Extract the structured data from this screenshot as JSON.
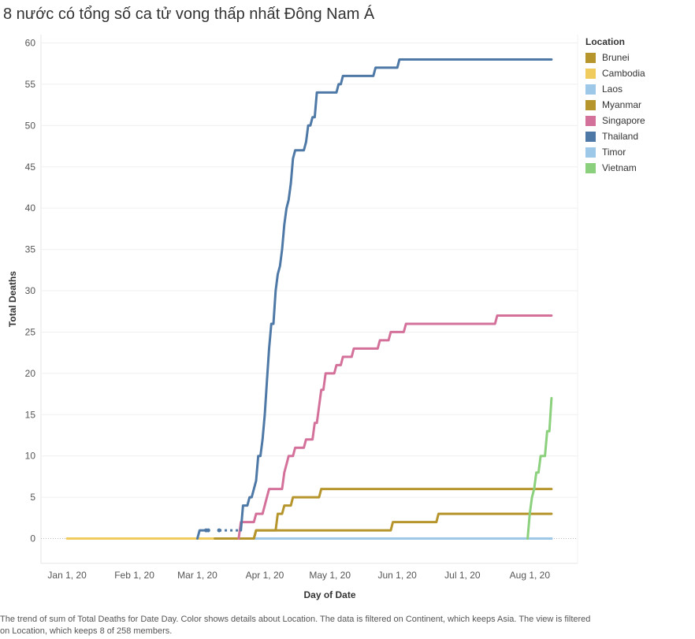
{
  "title": "8 nước có tổng số ca tử vong thấp nhất Đông Nam Á",
  "caption": "The trend of sum of Total Deaths for Date Day.  Color shows details about Location. The data is filtered on Continent, which keeps Asia. The view is filtered on Location, which keeps 8 of 258 members.",
  "legend": {
    "title": "Location",
    "items": [
      {
        "label": "Brunei",
        "color": "#b5952c"
      },
      {
        "label": "Cambodia",
        "color": "#f0cc5f"
      },
      {
        "label": "Laos",
        "color": "#9ec8e8"
      },
      {
        "label": "Myanmar",
        "color": "#b5952c"
      },
      {
        "label": "Singapore",
        "color": "#d4719a"
      },
      {
        "label": "Thailand",
        "color": "#4e79a7"
      },
      {
        "label": "Timor",
        "color": "#9ec8e8"
      },
      {
        "label": "Vietnam",
        "color": "#8bd07c"
      }
    ]
  },
  "chart_data": {
    "type": "line",
    "xlabel": "Day of Date",
    "ylabel": "Total Deaths",
    "x_ticks": [
      {
        "date": "2020-01-01",
        "label": "Jan 1, 20"
      },
      {
        "date": "2020-02-01",
        "label": "Feb 1, 20"
      },
      {
        "date": "2020-03-01",
        "label": "Mar 1, 20"
      },
      {
        "date": "2020-04-01",
        "label": "Apr 1, 20"
      },
      {
        "date": "2020-05-01",
        "label": "May 1, 20"
      },
      {
        "date": "2020-06-01",
        "label": "Jun 1, 20"
      },
      {
        "date": "2020-07-01",
        "label": "Jul 1, 20"
      },
      {
        "date": "2020-08-01",
        "label": "Aug 1, 20"
      }
    ],
    "xlim": [
      "2019-12-20",
      "2020-08-23"
    ],
    "ylim": [
      -3,
      61
    ],
    "y_ticks": [
      0,
      5,
      10,
      15,
      20,
      25,
      30,
      35,
      40,
      45,
      50,
      55,
      60
    ],
    "grid": "horizontal",
    "legend_position": "right",
    "series": [
      {
        "name": "Cambodia",
        "color": "#f0cc5f",
        "points": [
          [
            "2020-01-01",
            0
          ],
          [
            "2020-08-11",
            0
          ]
        ]
      },
      {
        "name": "Laos",
        "color": "#9ec8e8",
        "points": [
          [
            "2020-03-24",
            0
          ],
          [
            "2020-08-11",
            0
          ]
        ]
      },
      {
        "name": "Timor",
        "color": "#9ec8e8",
        "points": [
          [
            "2020-03-21",
            0
          ],
          [
            "2020-08-11",
            0
          ]
        ]
      },
      {
        "name": "Brunei",
        "color": "#b5952c",
        "points": [
          [
            "2020-03-09",
            0
          ],
          [
            "2020-03-27",
            0
          ],
          [
            "2020-03-28",
            1
          ],
          [
            "2020-04-30",
            1
          ],
          [
            "2020-05-01",
            1
          ],
          [
            "2020-05-29",
            1
          ],
          [
            "2020-05-30",
            2
          ],
          [
            "2020-06-19",
            2
          ],
          [
            "2020-06-20",
            3
          ],
          [
            "2020-08-11",
            3
          ]
        ]
      },
      {
        "name": "Myanmar",
        "color": "#b5952c",
        "points": [
          [
            "2020-03-27",
            0
          ],
          [
            "2020-03-28",
            1
          ],
          [
            "2020-04-06",
            1
          ],
          [
            "2020-04-07",
            3
          ],
          [
            "2020-04-09",
            3
          ],
          [
            "2020-04-10",
            4
          ],
          [
            "2020-04-13",
            4
          ],
          [
            "2020-04-14",
            5
          ],
          [
            "2020-04-26",
            5
          ],
          [
            "2020-04-27",
            6
          ],
          [
            "2020-08-11",
            6
          ]
        ]
      },
      {
        "name": "Singapore",
        "color": "#d4719a",
        "points": [
          [
            "2020-03-20",
            0
          ],
          [
            "2020-03-21",
            2
          ],
          [
            "2020-03-27",
            2
          ],
          [
            "2020-03-28",
            3
          ],
          [
            "2020-03-31",
            3
          ],
          [
            "2020-04-02",
            5
          ],
          [
            "2020-04-03",
            6
          ],
          [
            "2020-04-09",
            6
          ],
          [
            "2020-04-10",
            8
          ],
          [
            "2020-04-11",
            9
          ],
          [
            "2020-04-12",
            10
          ],
          [
            "2020-04-14",
            10
          ],
          [
            "2020-04-15",
            11
          ],
          [
            "2020-04-19",
            11
          ],
          [
            "2020-04-20",
            12
          ],
          [
            "2020-04-23",
            12
          ],
          [
            "2020-04-24",
            14
          ],
          [
            "2020-04-25",
            14
          ],
          [
            "2020-04-26",
            16
          ],
          [
            "2020-04-27",
            18
          ],
          [
            "2020-04-28",
            18
          ],
          [
            "2020-04-29",
            20
          ],
          [
            "2020-05-03",
            20
          ],
          [
            "2020-05-04",
            21
          ],
          [
            "2020-05-06",
            21
          ],
          [
            "2020-05-07",
            22
          ],
          [
            "2020-05-11",
            22
          ],
          [
            "2020-05-12",
            23
          ],
          [
            "2020-05-23",
            23
          ],
          [
            "2020-05-24",
            24
          ],
          [
            "2020-05-28",
            24
          ],
          [
            "2020-05-29",
            25
          ],
          [
            "2020-06-04",
            25
          ],
          [
            "2020-06-05",
            26
          ],
          [
            "2020-07-16",
            26
          ],
          [
            "2020-07-17",
            27
          ],
          [
            "2020-08-11",
            27
          ]
        ]
      },
      {
        "name": "Thailand",
        "color": "#4e79a7",
        "points": [
          [
            "2020-03-01",
            0
          ],
          [
            "2020-03-02",
            1
          ],
          [
            "2020-03-04",
            1
          ],
          [
            "2020-03-05",
            1
          ],
          [
            "2020-03-11",
            1
          ],
          [
            "2020-03-21",
            1
          ],
          [
            "2020-03-22",
            4
          ],
          [
            "2020-03-24",
            4
          ],
          [
            "2020-03-25",
            5
          ],
          [
            "2020-03-26",
            5
          ],
          [
            "2020-03-27",
            6
          ],
          [
            "2020-03-28",
            7
          ],
          [
            "2020-03-29",
            10
          ],
          [
            "2020-03-30",
            10
          ],
          [
            "2020-03-31",
            12
          ],
          [
            "2020-04-01",
            15
          ],
          [
            "2020-04-02",
            19
          ],
          [
            "2020-04-03",
            23
          ],
          [
            "2020-04-04",
            26
          ],
          [
            "2020-04-05",
            26
          ],
          [
            "2020-04-06",
            30
          ],
          [
            "2020-04-07",
            32
          ],
          [
            "2020-04-08",
            33
          ],
          [
            "2020-04-09",
            35
          ],
          [
            "2020-04-10",
            38
          ],
          [
            "2020-04-11",
            40
          ],
          [
            "2020-04-12",
            41
          ],
          [
            "2020-04-13",
            43
          ],
          [
            "2020-04-14",
            46
          ],
          [
            "2020-04-15",
            47
          ],
          [
            "2020-04-19",
            47
          ],
          [
            "2020-04-20",
            48
          ],
          [
            "2020-04-21",
            50
          ],
          [
            "2020-04-22",
            50
          ],
          [
            "2020-04-23",
            51
          ],
          [
            "2020-04-24",
            51
          ],
          [
            "2020-04-25",
            54
          ],
          [
            "2020-05-04",
            54
          ],
          [
            "2020-05-05",
            55
          ],
          [
            "2020-05-06",
            55
          ],
          [
            "2020-05-07",
            56
          ],
          [
            "2020-05-21",
            56
          ],
          [
            "2020-05-22",
            57
          ],
          [
            "2020-06-01",
            57
          ],
          [
            "2020-06-02",
            58
          ],
          [
            "2020-08-11",
            58
          ]
        ]
      },
      {
        "name": "Vietnam",
        "color": "#8bd07c",
        "points": [
          [
            "2020-07-31",
            0
          ],
          [
            "2020-08-01",
            3
          ],
          [
            "2020-08-02",
            5
          ],
          [
            "2020-08-03",
            6
          ],
          [
            "2020-08-04",
            8
          ],
          [
            "2020-08-05",
            8
          ],
          [
            "2020-08-06",
            10
          ],
          [
            "2020-08-08",
            10
          ],
          [
            "2020-08-09",
            13
          ],
          [
            "2020-08-10",
            13
          ],
          [
            "2020-08-11",
            17
          ]
        ]
      }
    ]
  }
}
